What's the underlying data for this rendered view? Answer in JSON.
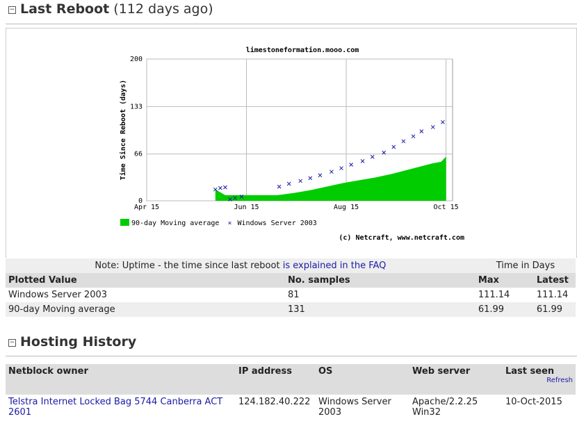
{
  "reboot": {
    "title": "Last Reboot",
    "subtitle": "(112 days ago)"
  },
  "chart_data": {
    "type": "combo",
    "title": "limestoneformation.mooo.com",
    "y_label": "Time Since Reboot (days)",
    "credit": "(c) Netcraft, www.netcraft.com",
    "xlim": [
      0,
      187
    ],
    "xticks": [
      {
        "value": 0,
        "label": "Apr 15"
      },
      {
        "value": 61,
        "label": "Jun 15"
      },
      {
        "value": 122,
        "label": "Aug 15"
      },
      {
        "value": 183,
        "label": "Oct 15"
      }
    ],
    "ylim": [
      0,
      200
    ],
    "yticks": [
      0,
      66,
      133,
      200
    ],
    "grid": true,
    "series": [
      {
        "name": "90-day Moving average",
        "type": "area",
        "color": "#00cc00",
        "x": [
          42,
          48,
          80,
          90,
          100,
          110,
          120,
          130,
          140,
          150,
          160,
          170,
          175,
          180,
          182,
          183
        ],
        "values": [
          16,
          8,
          8,
          11,
          15,
          20,
          25,
          29,
          33,
          38,
          44,
          50,
          53,
          55,
          60,
          62
        ]
      },
      {
        "name": "Windows Server 2003",
        "type": "scatter",
        "color": "#1a1aa6",
        "x": [
          42,
          45,
          48,
          51,
          54,
          58,
          81,
          87,
          94,
          100,
          106,
          113,
          119,
          125,
          132,
          138,
          145,
          151,
          157,
          163,
          168,
          175,
          181
        ],
        "values": [
          16,
          18,
          19,
          2,
          4,
          6,
          20,
          24,
          28,
          32,
          36,
          41,
          46,
          51,
          56,
          62,
          68,
          76,
          84,
          91,
          98,
          104,
          111
        ]
      }
    ]
  },
  "uptime_table": {
    "note": "Note: Uptime - the time since last reboot",
    "note_link": "is explained in the FAQ",
    "group_header": "Time in Days",
    "columns": [
      "Plotted Value",
      "No. samples",
      "Max",
      "Latest"
    ],
    "rows": [
      [
        "Windows Server 2003",
        81,
        111.14,
        111.14
      ],
      [
        "90-day Moving average",
        131,
        61.99,
        61.99
      ]
    ]
  },
  "hosting": {
    "title": "Hosting History",
    "refresh": "Refresh",
    "columns": [
      "Netblock owner",
      "IP address",
      "OS",
      "Web server",
      "Last seen"
    ],
    "rows": [
      [
        "Telstra Internet Locked Bag 5744 Canberra ACT 2601",
        "124.182.40.222",
        "Windows Server 2003",
        "Apache/2.2.25 Win32",
        "10-Oct-2015"
      ]
    ]
  }
}
